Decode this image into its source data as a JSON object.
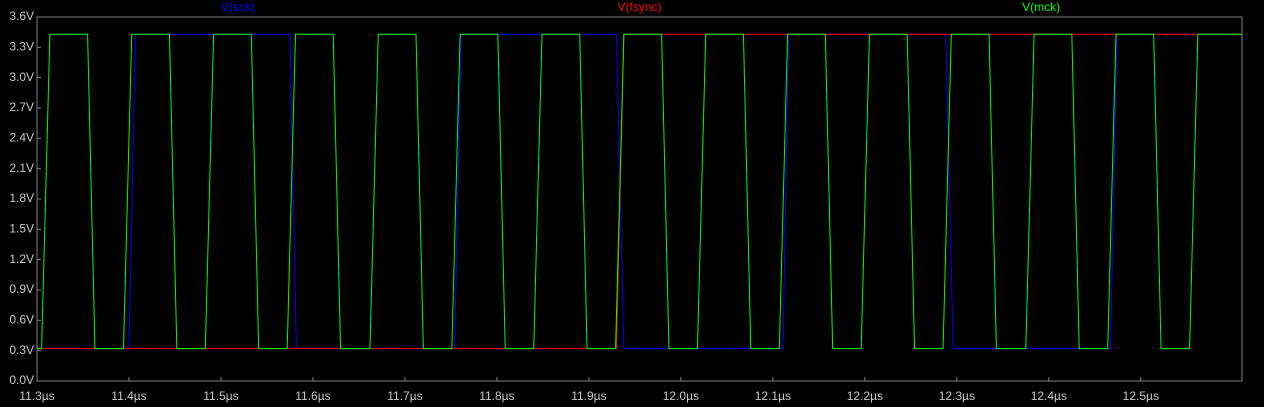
{
  "chart_data": {
    "type": "line",
    "legend": "top",
    "xlim": [
      11.3,
      12.61
    ],
    "ylim": [
      0,
      3.6
    ],
    "xticks": [
      {
        "value": 11.3,
        "label": "11.3µs"
      },
      {
        "value": 11.4,
        "label": "11.4µs"
      },
      {
        "value": 11.5,
        "label": "11.5µs"
      },
      {
        "value": 11.6,
        "label": "11.6µs"
      },
      {
        "value": 11.7,
        "label": "11.7µs"
      },
      {
        "value": 11.8,
        "label": "11.8µs"
      },
      {
        "value": 11.9,
        "label": "11.9µs"
      },
      {
        "value": 12.0,
        "label": "12.0µs"
      },
      {
        "value": 12.1,
        "label": "12.1µs"
      },
      {
        "value": 12.2,
        "label": "12.2µs"
      },
      {
        "value": 12.3,
        "label": "12.3µs"
      },
      {
        "value": 12.4,
        "label": "12.4µs"
      },
      {
        "value": 12.5,
        "label": "12.5µs"
      }
    ],
    "yticks": [
      {
        "value": 0,
        "label": "0.0V"
      },
      {
        "value": 0.3,
        "label": "0.3V"
      },
      {
        "value": 0.6,
        "label": "0.6V"
      },
      {
        "value": 0.9,
        "label": "0.9V"
      },
      {
        "value": 1.2,
        "label": "1.2V"
      },
      {
        "value": 1.5,
        "label": "1.5V"
      },
      {
        "value": 1.8,
        "label": "1.8V"
      },
      {
        "value": 2.1,
        "label": "2.1V"
      },
      {
        "value": 2.4,
        "label": "2.4V"
      },
      {
        "value": 2.7,
        "label": "2.7V"
      },
      {
        "value": 3.0,
        "label": "3.0V"
      },
      {
        "value": 3.3,
        "label": "3.3V"
      },
      {
        "value": 3.6,
        "label": "3.6V"
      }
    ],
    "series": [
      {
        "name": "V(sck)",
        "color": "#0000ff",
        "x": [
          11.3,
          11.4,
          11.407,
          11.575,
          11.582,
          11.754,
          11.761,
          11.93,
          11.938,
          12.111,
          12.117,
          12.288,
          12.296,
          12.467,
          12.474,
          12.61
        ],
        "values": [
          0.32,
          0.32,
          3.43,
          3.43,
          0.32,
          0.32,
          3.43,
          3.43,
          0.32,
          0.32,
          3.43,
          3.43,
          0.32,
          0.32,
          3.43,
          3.43
        ]
      },
      {
        "name": "V(fsync)",
        "color": "#ff0000",
        "x": [
          11.3,
          11.93,
          11.938,
          12.61
        ],
        "values": [
          0.32,
          0.32,
          3.43,
          3.43
        ]
      },
      {
        "name": "V(mck)",
        "color": "#00ff00",
        "x": [
          11.3,
          11.305,
          11.314,
          11.355,
          11.363,
          11.394,
          11.403,
          11.444,
          11.452,
          11.483,
          11.492,
          11.533,
          11.541,
          11.572,
          11.581,
          11.622,
          11.63,
          11.662,
          11.671,
          11.712,
          11.72,
          11.751,
          11.76,
          11.801,
          11.809,
          11.84,
          11.849,
          11.89,
          11.898,
          11.929,
          11.938,
          11.979,
          11.987,
          12.018,
          12.027,
          12.068,
          12.076,
          12.107,
          12.116,
          12.157,
          12.165,
          12.196,
          12.205,
          12.246,
          12.254,
          12.285,
          12.294,
          12.335,
          12.343,
          12.375,
          12.384,
          12.425,
          12.433,
          12.464,
          12.473,
          12.514,
          12.522,
          12.553,
          12.562,
          12.61
        ],
        "values": [
          0.32,
          0.32,
          3.43,
          3.43,
          0.32,
          0.32,
          3.43,
          3.43,
          0.32,
          0.32,
          3.43,
          3.43,
          0.32,
          0.32,
          3.43,
          3.43,
          0.32,
          0.32,
          3.43,
          3.43,
          0.32,
          0.32,
          3.43,
          3.43,
          0.32,
          0.32,
          3.43,
          3.43,
          0.32,
          0.32,
          3.43,
          3.43,
          0.32,
          0.32,
          3.43,
          3.43,
          0.32,
          0.32,
          3.43,
          3.43,
          0.32,
          0.32,
          3.43,
          3.43,
          0.32,
          0.32,
          3.43,
          3.43,
          0.32,
          0.32,
          3.43,
          3.43,
          0.32,
          0.32,
          3.43,
          3.43,
          0.32,
          0.32,
          3.43,
          3.43
        ]
      }
    ]
  }
}
